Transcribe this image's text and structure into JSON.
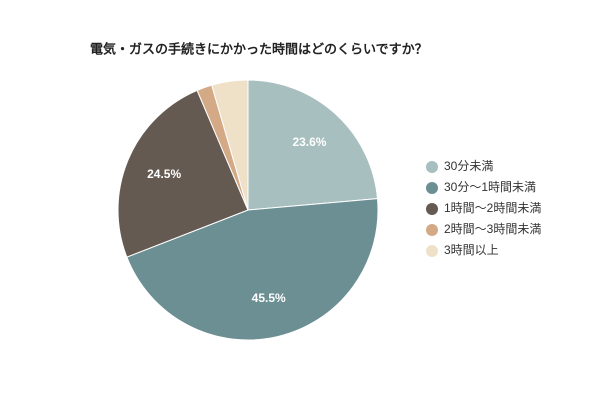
{
  "chart_data": {
    "type": "pie",
    "title": "電気・ガスの手続きにかかった時間はどのくらいですか？",
    "categories": [
      "30分未満",
      "30分〜1時間未満",
      "1時間〜2時間未満",
      "2時間〜3時間未満",
      "3時間以上"
    ],
    "values": [
      23.6,
      45.5,
      24.5,
      1.9,
      4.5
    ],
    "value_labels": [
      "23.6%",
      "45.5%",
      "24.5%",
      null,
      null
    ],
    "colors": [
      "#a8bfbf",
      "#6b8f93",
      "#655a52",
      "#d4aa86",
      "#efe0c8"
    ],
    "legend": "right"
  }
}
